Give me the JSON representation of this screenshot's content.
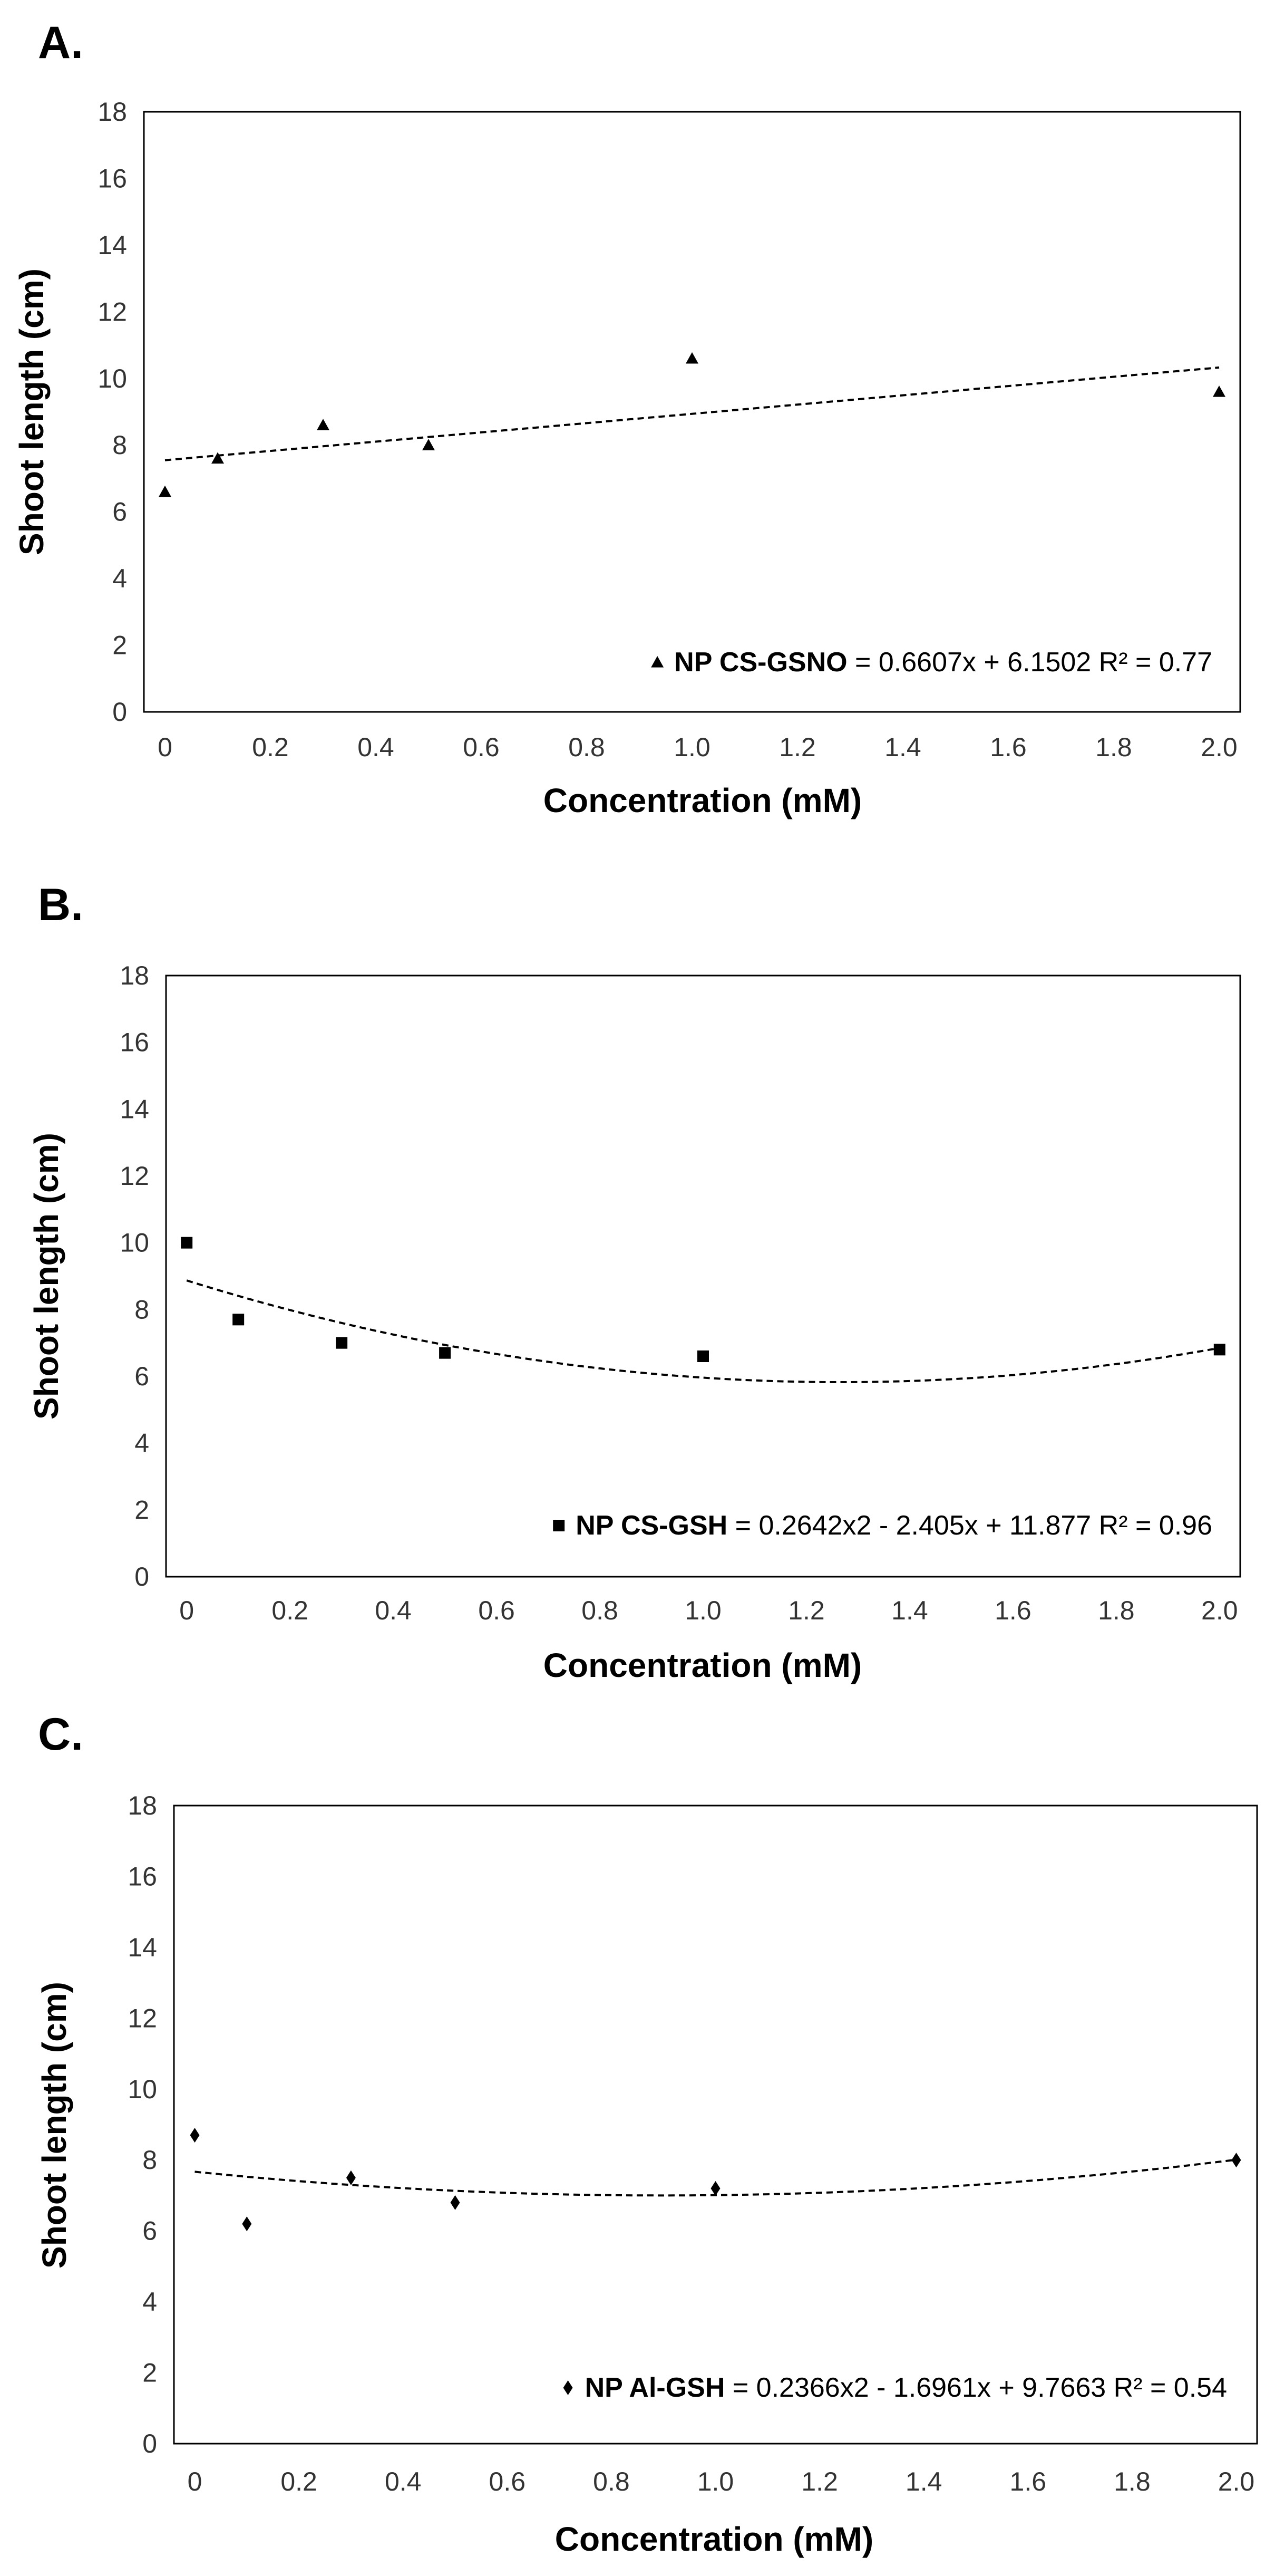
{
  "chart_data": [
    {
      "panel": "A.",
      "type": "scatter",
      "xlabel": "Concentration (mM)",
      "ylabel": "Shoot length (cm)",
      "x_ticks": [
        "0",
        "0.2",
        "0.4",
        "0.6",
        "0.8",
        "1.0",
        "1.2",
        "1.4",
        "1.6",
        "1.8",
        "2.0"
      ],
      "y_ticks": [
        "0",
        "2",
        "4",
        "6",
        "8",
        "10",
        "12",
        "14",
        "16",
        "18"
      ],
      "xlim": [
        -0.04,
        2.04
      ],
      "ylim": [
        0,
        18
      ],
      "marker": "triangle",
      "x": [
        0,
        0.1,
        0.3,
        0.5,
        1.0,
        2.0
      ],
      "y": [
        6.6,
        7.6,
        8.6,
        8.0,
        10.6,
        9.6
      ],
      "trend": {
        "kind": "linear",
        "coef": [
          6.1502,
          0.6607
        ],
        "display_coef": [
          7.55,
          1.39
        ]
      },
      "legend": {
        "series_name": "NP CS-GSNO",
        "equation": " = 0.6607x + 6.1502 R² = 0.77"
      }
    },
    {
      "panel": "B.",
      "type": "scatter",
      "xlabel": "Concentration (mM)",
      "ylabel": "Shoot length (cm)",
      "x_ticks": [
        "0",
        "0.2",
        "0.4",
        "0.6",
        "0.8",
        "1.0",
        "1.2",
        "1.4",
        "1.6",
        "1.8",
        "2.0"
      ],
      "y_ticks": [
        "0",
        "2",
        "4",
        "6",
        "8",
        "10",
        "12",
        "14",
        "16",
        "18"
      ],
      "xlim": [
        -0.04,
        2.04
      ],
      "ylim": [
        0,
        18
      ],
      "marker": "square",
      "x": [
        0,
        0.1,
        0.3,
        0.5,
        1.0,
        2.0
      ],
      "y": [
        10.0,
        7.7,
        7.0,
        6.7,
        6.6,
        6.8
      ],
      "trend": {
        "kind": "quadratic",
        "coef": [
          11.877,
          -2.405,
          0.2642
        ],
        "display_coef": [
          8.87,
          -4.81,
          1.9
        ]
      },
      "legend": {
        "series_name": "NP CS-GSH",
        "equation": " = 0.2642x2 - 2.405x + 11.877 R² = 0.96"
      }
    },
    {
      "panel": "C.",
      "type": "scatter",
      "xlabel": "Concentration (mM)",
      "ylabel": "Shoot length (cm)",
      "x_ticks": [
        "0",
        "0.2",
        "0.4",
        "0.6",
        "0.8",
        "1.0",
        "1.2",
        "1.4",
        "1.6",
        "1.8",
        "2.0"
      ],
      "y_ticks": [
        "0",
        "2",
        "4",
        "6",
        "8",
        "10",
        "12",
        "14",
        "16",
        "18"
      ],
      "xlim": [
        -0.04,
        2.04
      ],
      "ylim": [
        0,
        18
      ],
      "marker": "diamond",
      "x": [
        0,
        0.1,
        0.3,
        0.5,
        1.0,
        2.0
      ],
      "y": [
        8.7,
        6.2,
        7.5,
        6.8,
        7.2,
        8.0
      ],
      "trend": {
        "kind": "quadratic",
        "coef": [
          9.7663,
          -1.6961,
          0.2366
        ],
        "display_coef": [
          7.67,
          -1.49,
          0.83
        ]
      },
      "legend": {
        "series_name": "NP Al-GSH",
        "equation": " = 0.2366x2 - 1.6961x + 9.7663 R² = 0.54"
      }
    }
  ]
}
